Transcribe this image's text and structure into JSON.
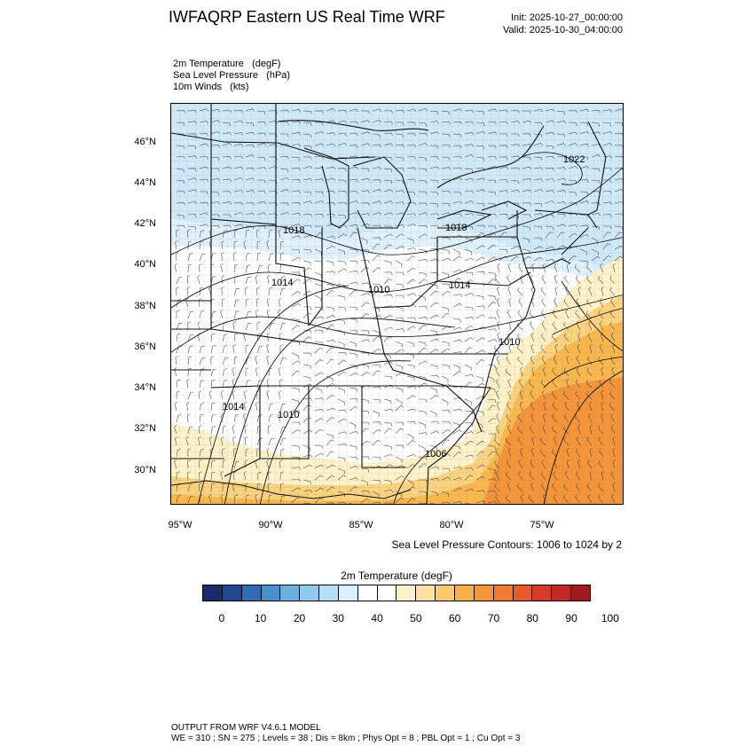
{
  "header": {
    "title": "IWFAQRP Eastern US Real Time WRF",
    "init": "Init: 2025-10-27_00:00:00",
    "valid": "Valid: 2025-10-30_04:00:00"
  },
  "fields": [
    "2m Temperature   (degF)",
    "Sea Level Pressure   (hPa)",
    "10m Winds   (kts)"
  ],
  "map": {
    "lat_labels": [
      "46°N",
      "44°N",
      "42°N",
      "40°N",
      "38°N",
      "36°N",
      "34°N",
      "32°N",
      "30°N"
    ],
    "lon_labels": [
      "95°W",
      "90°W",
      "85°W",
      "80°W",
      "75°W"
    ],
    "pressure_labels": [
      "1022",
      "1018",
      "1018",
      "1014",
      "1010",
      "1014",
      "1010",
      "1014",
      "1010",
      "1006"
    ],
    "temperature_colors": {
      "cold_north": "#cfe9f8",
      "cool": "#dff2fb",
      "mild": "#ffffff",
      "warm_60": "#fff2c8",
      "warm_70": "#fbd37f",
      "warm_75": "#f9b74d",
      "warm_80": "#f5953a"
    }
  },
  "contour_note": "Sea Level Pressure Contours: 1006 to 1024 by 2",
  "colorbar": {
    "title": "2m Temperature  (degF)",
    "colors": [
      "#1a2a6c",
      "#23468f",
      "#2d6db3",
      "#4a8fd0",
      "#6aaee0",
      "#8fc9ee",
      "#b6def6",
      "#d9effb",
      "#ffffff",
      "#ffffff",
      "#fff0c8",
      "#fde1a0",
      "#fbc86e",
      "#f9b04b",
      "#f6953c",
      "#f07a32",
      "#e65a2c",
      "#d63a28",
      "#c02a24",
      "#a01c1c"
    ],
    "ticks": [
      "0",
      "10",
      "20",
      "30",
      "40",
      "50",
      "60",
      "70",
      "80",
      "90",
      "100"
    ]
  },
  "footer": {
    "line1": "OUTPUT FROM WRF V4.6.1 MODEL",
    "line2": "WE = 310 ; SN = 275 ; Levels = 38 ; Dis = 8km ; Phys Opt = 8 ; PBL Opt = 1 ; Cu Opt = 3"
  }
}
